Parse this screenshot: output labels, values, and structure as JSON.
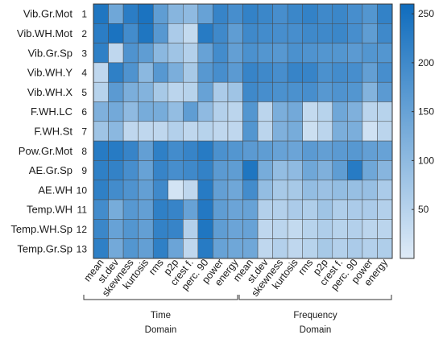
{
  "chart_data": {
    "type": "heatmap",
    "title": "",
    "rows": [
      "Vib.Gr.Mot",
      "Vib.WH.Mot",
      "Vib.Gr.Sp",
      "Vib.WH.Y",
      "Vib.WH.X",
      "F.WH.LC",
      "F.WH.St",
      "Pow.Gr.Mot",
      "AE.Gr.Sp",
      "AE.WH",
      "Temp.WH",
      "Temp.WH.Sp",
      "Temp.Gr.Sp"
    ],
    "row_numbers": [
      "1",
      "2",
      "3",
      "4",
      "5",
      "6",
      "7",
      "8",
      "9",
      "10",
      "11",
      "12",
      "13"
    ],
    "columns": [
      "mean",
      "st.dev",
      "skewness",
      "kurtosis",
      "rms",
      "p2p",
      "crest f.",
      "perc. 90",
      "power",
      "energy",
      "mean",
      "st.dev",
      "skewness",
      "kurtosis",
      "rms",
      "p2p",
      "crest f.",
      "perc. 90",
      "power",
      "energy"
    ],
    "groups": [
      {
        "line1": "Time",
        "line2": "Domain"
      },
      {
        "line1": "Frequency",
        "line2": "Domain"
      }
    ],
    "values": [
      [
        240,
        140,
        225,
        245,
        160,
        110,
        100,
        150,
        210,
        190,
        215,
        205,
        190,
        205,
        215,
        200,
        205,
        190,
        175,
        215
      ],
      [
        225,
        245,
        195,
        240,
        170,
        65,
        35,
        230,
        200,
        160,
        200,
        195,
        190,
        190,
        200,
        200,
        205,
        190,
        160,
        200
      ],
      [
        220,
        40,
        180,
        160,
        105,
        80,
        55,
        150,
        195,
        155,
        185,
        175,
        170,
        185,
        180,
        175,
        175,
        165,
        175,
        175
      ],
      [
        40,
        220,
        180,
        105,
        170,
        125,
        70,
        170,
        190,
        165,
        210,
        200,
        190,
        210,
        210,
        185,
        195,
        190,
        155,
        190
      ],
      [
        50,
        165,
        125,
        115,
        70,
        45,
        50,
        150,
        65,
        80,
        200,
        190,
        185,
        185,
        190,
        170,
        180,
        175,
        115,
        165
      ],
      [
        120,
        135,
        100,
        130,
        130,
        95,
        160,
        100,
        55,
        45,
        175,
        45,
        125,
        135,
        35,
        50,
        140,
        120,
        45,
        50
      ],
      [
        80,
        105,
        40,
        40,
        40,
        55,
        40,
        50,
        40,
        40,
        175,
        45,
        120,
        130,
        25,
        45,
        125,
        125,
        20,
        45
      ],
      [
        230,
        230,
        210,
        155,
        220,
        195,
        210,
        230,
        185,
        175,
        165,
        160,
        150,
        145,
        165,
        155,
        165,
        170,
        155,
        150
      ],
      [
        220,
        215,
        190,
        150,
        210,
        190,
        200,
        215,
        165,
        160,
        240,
        130,
        95,
        100,
        140,
        120,
        160,
        230,
        140,
        110
      ],
      [
        220,
        195,
        180,
        155,
        200,
        15,
        40,
        230,
        155,
        140,
        195,
        95,
        70,
        70,
        95,
        85,
        95,
        90,
        90,
        65
      ],
      [
        195,
        130,
        170,
        155,
        220,
        210,
        150,
        235,
        160,
        145,
        150,
        55,
        55,
        65,
        60,
        80,
        60,
        65,
        65,
        55
      ],
      [
        205,
        150,
        175,
        155,
        215,
        210,
        55,
        240,
        160,
        145,
        150,
        40,
        45,
        35,
        50,
        60,
        50,
        55,
        45,
        45
      ],
      [
        220,
        135,
        175,
        155,
        220,
        145,
        40,
        230,
        150,
        140,
        140,
        40,
        55,
        40,
        50,
        70,
        55,
        65,
        55,
        60
      ]
    ],
    "colorbar": {
      "min": 0,
      "max": 260,
      "ticks": [
        50,
        100,
        150,
        200,
        250
      ],
      "color_low": "#dfebf7",
      "color_high": "#0f6cbd"
    },
    "grid": true
  }
}
